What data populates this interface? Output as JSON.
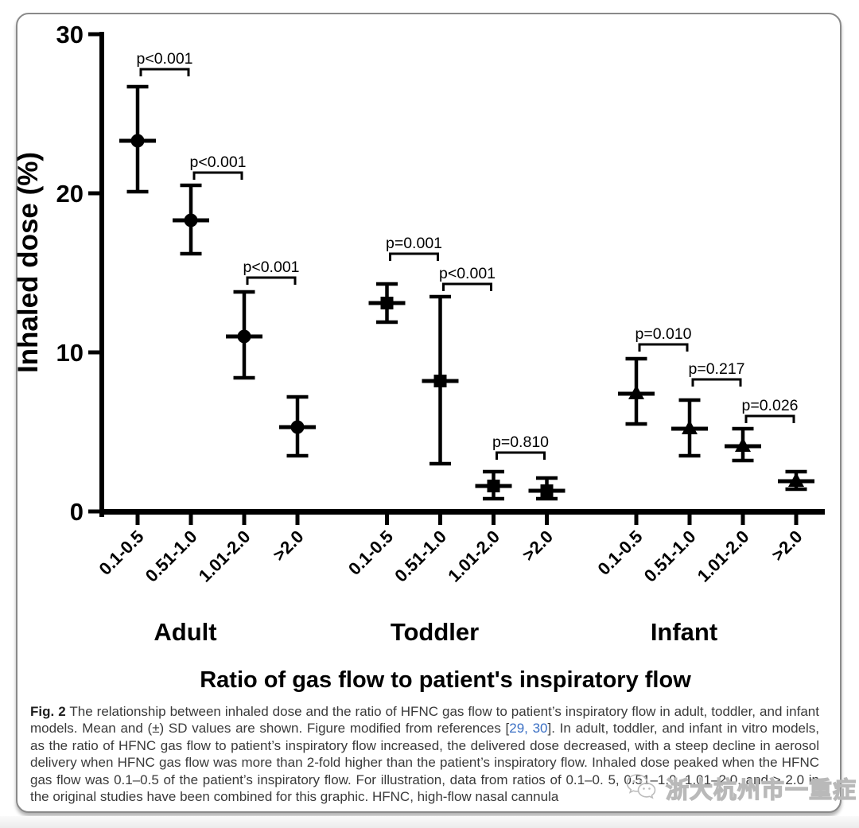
{
  "figure": {
    "caption": {
      "label": "Fig. 2",
      "text_before_refs": " The relationship between inhaled dose and the ratio of HFNC gas flow to patient’s inspiratory flow in adult, toddler, and infant models. Mean and (±) SD values are shown. Figure modified from references [",
      "refs": "29, 30",
      "text_after_refs": "]. In adult, toddler, and infant in vitro models, as the ratio of HFNC gas flow to patient’s inspiratory flow increased, the delivered dose decreased, with a steep decline in aerosol delivery when HFNC gas flow was more than 2-fold higher than the patient’s inspiratory flow. Inhaled dose peaked when the HFNC gas flow was 0.1–0.5 of the patient’s inspiratory flow. For illustration, data from ratios of 0.1–0. 5, 0.51–1.0, 1.01–2.0, and > 2.0 in the original studies have been combined for this graphic. HFNC, high-flow nasal cannula"
    },
    "watermark": {
      "icon": "wechat-icon",
      "text": "浙大杭州市一重症"
    },
    "colors": {
      "chart": "#000000",
      "caption_text": "#3a3a3a",
      "ref_link": "#3a6fc4",
      "watermark": "#b9b9b9"
    }
  },
  "chart_data": {
    "type": "scatter",
    "title": "",
    "xlabel": "Ratio of gas flow to patient's inspiratory flow",
    "ylabel": "Inhaled dose (%)",
    "ylim": [
      0,
      30
    ],
    "yticks": [
      0,
      10,
      20,
      30
    ],
    "categories": [
      "0.1-0.5",
      "0.51-1.0",
      "1.01-2.0",
      ">2.0"
    ],
    "error_bars": "mean ± SD",
    "legend": "none",
    "grid": false,
    "groups": [
      {
        "name": "Adult",
        "marker": "circle",
        "means": [
          23.3,
          18.3,
          11.0,
          5.3
        ],
        "upper": [
          26.7,
          20.5,
          13.8,
          7.2
        ],
        "lower": [
          20.1,
          16.2,
          8.4,
          3.5
        ],
        "comparisons": [
          {
            "pair": [
              0,
              1
            ],
            "label": "p<0.001",
            "bracket_y": 27.8
          },
          {
            "pair": [
              1,
              2
            ],
            "label": "p<0.001",
            "bracket_y": 21.3
          },
          {
            "pair": [
              2,
              3
            ],
            "label": "p<0.001",
            "bracket_y": 14.7
          }
        ]
      },
      {
        "name": "Toddler",
        "marker": "square",
        "means": [
          13.1,
          8.2,
          1.6,
          1.3
        ],
        "upper": [
          14.3,
          13.5,
          2.5,
          2.1
        ],
        "lower": [
          11.9,
          3.0,
          0.8,
          0.8
        ],
        "comparisons": [
          {
            "pair": [
              0,
              1
            ],
            "label": "p=0.001",
            "bracket_y": 16.2
          },
          {
            "pair": [
              1,
              2
            ],
            "label": "p<0.001",
            "bracket_y": 14.3
          },
          {
            "pair": [
              2,
              3
            ],
            "label": "p=0.810",
            "bracket_y": 3.7
          }
        ]
      },
      {
        "name": "Infant",
        "marker": "triangle",
        "means": [
          7.4,
          5.2,
          4.1,
          1.9
        ],
        "upper": [
          9.6,
          7.0,
          5.2,
          2.5
        ],
        "lower": [
          5.5,
          3.5,
          3.2,
          1.4
        ],
        "comparisons": [
          {
            "pair": [
              0,
              1
            ],
            "label": "p=0.010",
            "bracket_y": 10.5
          },
          {
            "pair": [
              1,
              2
            ],
            "label": "p=0.217",
            "bracket_y": 8.3
          },
          {
            "pair": [
              2,
              3
            ],
            "label": "p=0.026",
            "bracket_y": 6.0
          }
        ]
      }
    ]
  }
}
